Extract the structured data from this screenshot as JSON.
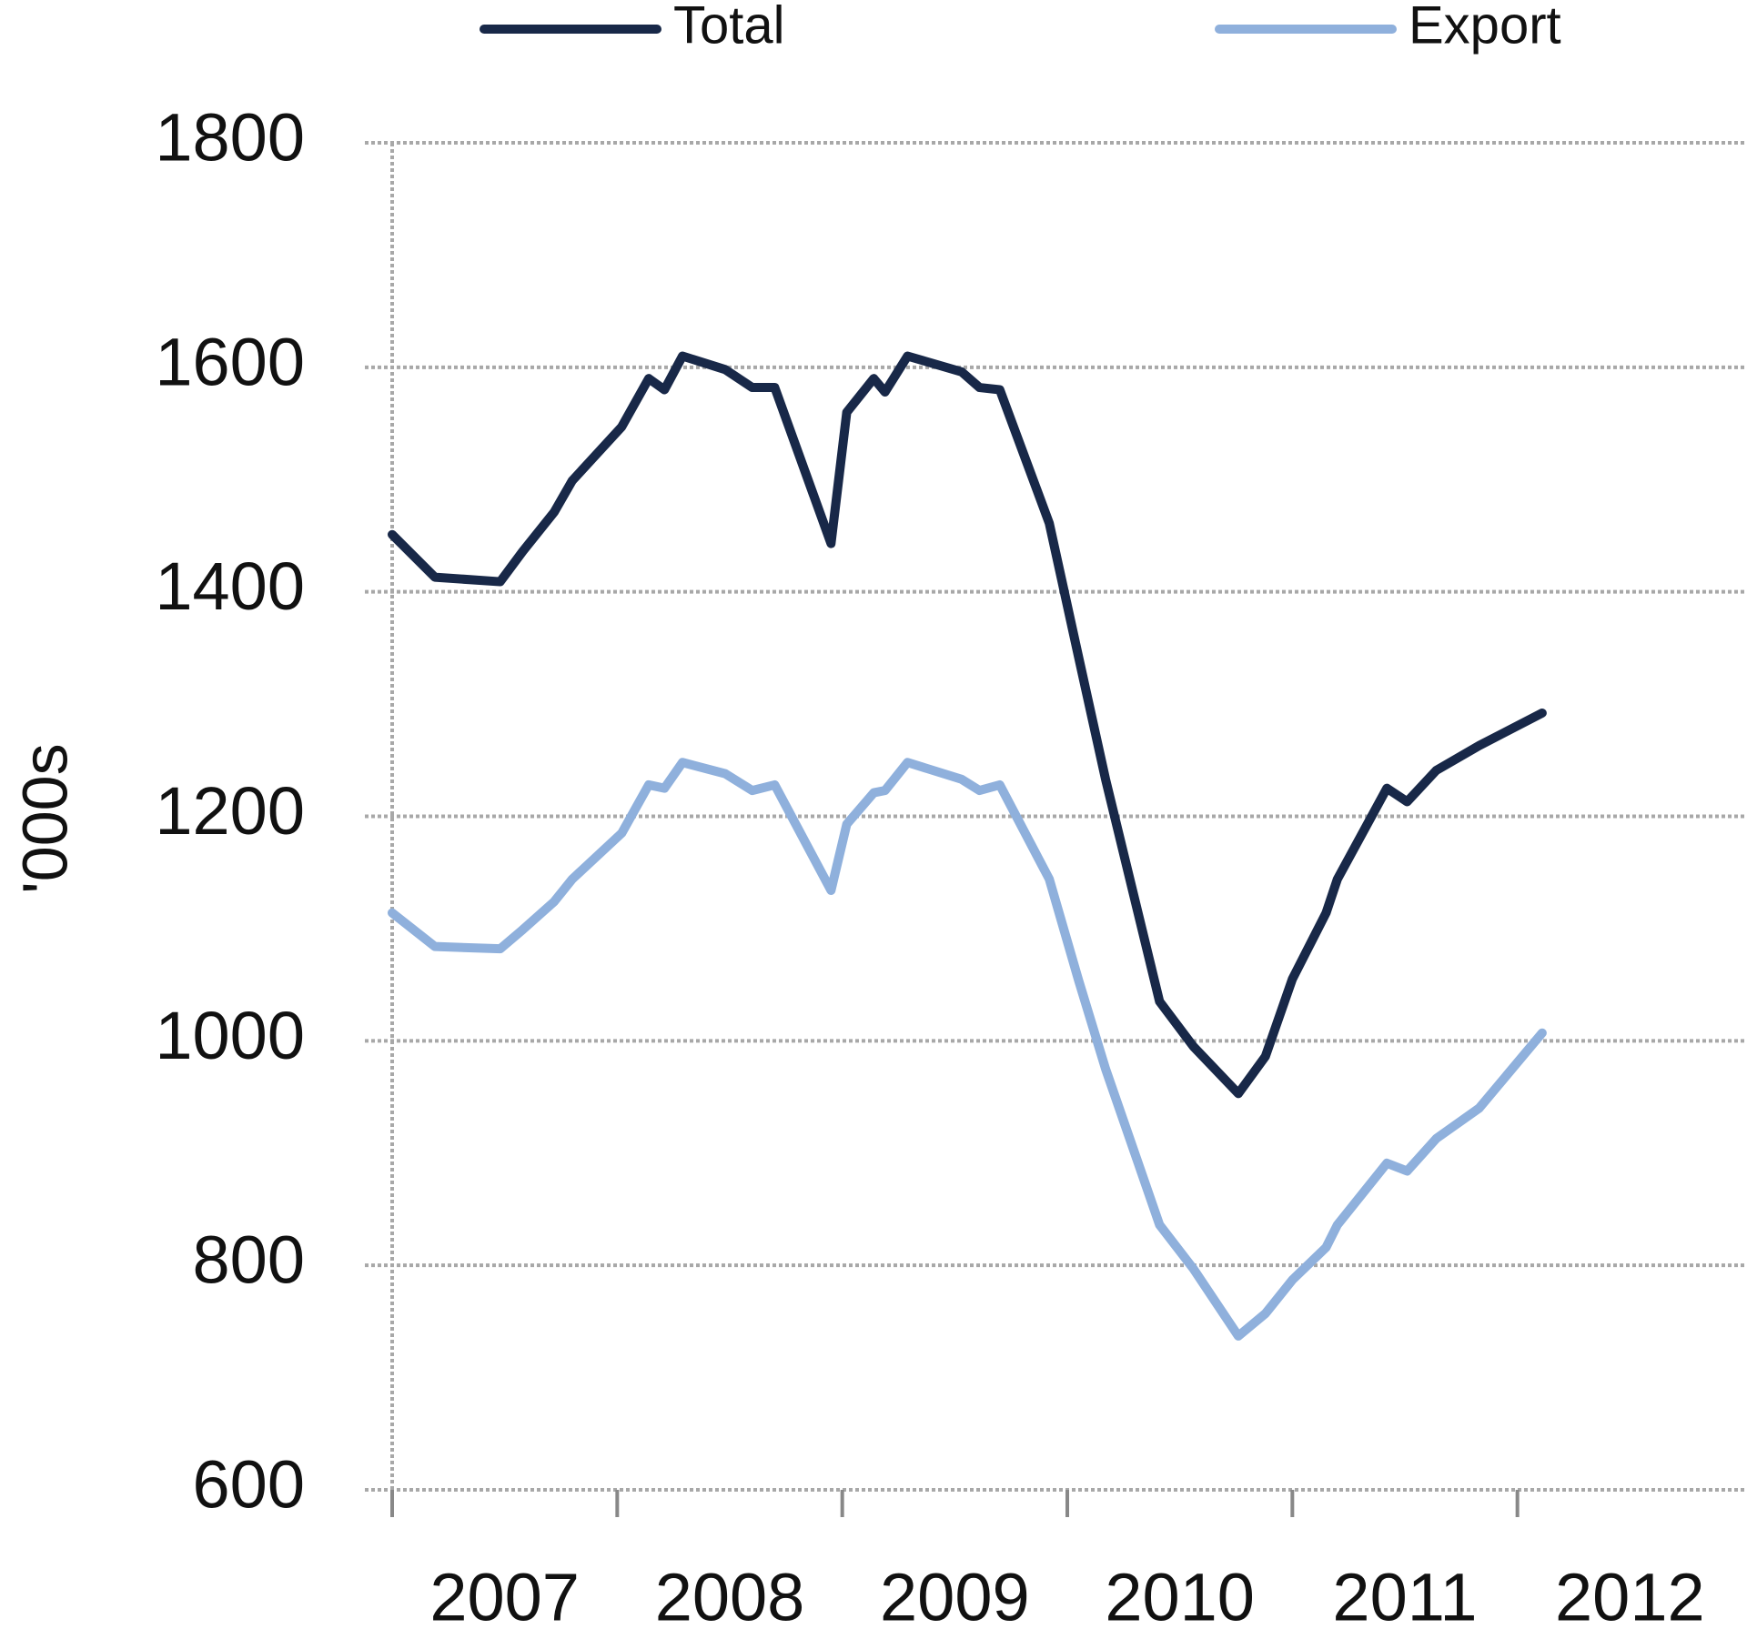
{
  "chart_data": {
    "type": "line",
    "y_label": "'000s",
    "x": [
      2007.0,
      2007.19,
      2007.48,
      2007.58,
      2007.72,
      2007.8,
      2008.02,
      2008.14,
      2008.21,
      2008.29,
      2008.48,
      2008.6,
      2008.7,
      2008.95,
      2009.02,
      2009.14,
      2009.19,
      2009.29,
      2009.53,
      2009.61,
      2009.7,
      2009.92,
      2010.05,
      2010.17,
      2010.41,
      2010.56,
      2010.76,
      2010.88,
      2011.0,
      2011.15,
      2011.2,
      2011.42,
      2011.51,
      2011.64,
      2011.83,
      2012.11
    ],
    "series": [
      {
        "name": "Total",
        "color": "#182848",
        "values": [
          1451,
          1413,
          1409,
          1436,
          1471,
          1499,
          1547,
          1590,
          1580,
          1610,
          1598,
          1582,
          1582,
          1443,
          1560,
          1590,
          1578,
          1610,
          1596,
          1582,
          1580,
          1461,
          1342,
          1233,
          1035,
          995,
          953,
          986,
          1055,
          1114,
          1144,
          1225,
          1213,
          1241,
          1263,
          1292
        ]
      },
      {
        "name": "Export",
        "color": "#8fb0dc",
        "values": [
          1114,
          1084,
          1082,
          1099,
          1124,
          1144,
          1185,
          1228,
          1225,
          1248,
          1238,
          1223,
          1228,
          1134,
          1193,
          1221,
          1223,
          1248,
          1233,
          1223,
          1228,
          1144,
          1054,
          975,
          836,
          797,
          737,
          757,
          787,
          816,
          836,
          891,
          884,
          913,
          940,
          1007
        ]
      }
    ],
    "xlim": [
      2007,
      2013
    ],
    "xticks": [
      2007,
      2008,
      2009,
      2010,
      2011,
      2012
    ],
    "ylim": [
      600,
      1800
    ],
    "yticks": [
      600,
      800,
      1000,
      1200,
      1400,
      1600,
      1800
    ],
    "grid": true,
    "legend": "top"
  }
}
